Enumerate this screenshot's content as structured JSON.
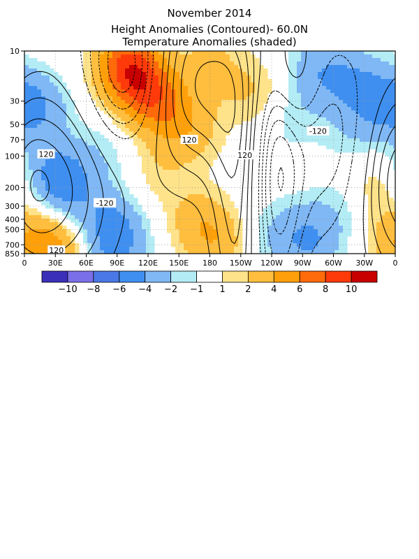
{
  "header": {
    "title": "November 2014",
    "subtitle1": "Height Anomalies (Contoured)- 60.0N",
    "subtitle2": "Temperature Anomalies (shaded)"
  },
  "colors": {
    "frame": "#000000",
    "grid": "#999999",
    "contour": "#000000"
  },
  "chart_data": {
    "type": "heatmap",
    "title": "November 2014",
    "subtitle": [
      "Height Anomalies (Contoured)- 60.0N",
      "Temperature Anomalies (shaded)"
    ],
    "x_axis": {
      "quantity": "longitude",
      "range_deg_east": [
        0,
        360
      ],
      "tick_values_deg_east": [
        0,
        30,
        60,
        90,
        120,
        150,
        180,
        210,
        240,
        270,
        300,
        330,
        360
      ],
      "tick_labels": [
        "0",
        "30E",
        "60E",
        "90E",
        "120E",
        "150E",
        "180",
        "150W",
        "120W",
        "90W",
        "60W",
        "30W",
        "0"
      ]
    },
    "y_axis": {
      "quantity": "pressure",
      "scale": "log",
      "inverted": true,
      "range": [
        850,
        10
      ],
      "tick_values": [
        10,
        30,
        50,
        70,
        100,
        200,
        300,
        400,
        500,
        700,
        850
      ],
      "tick_labels": [
        "10",
        "30",
        "50",
        "70",
        "100",
        "200",
        "300",
        "400",
        "500",
        "700",
        "850"
      ]
    },
    "grid": true,
    "shading": {
      "variable": "temperature anomaly",
      "levels": [
        -10,
        -8,
        -6,
        -4,
        -2,
        -1,
        1,
        2,
        4,
        6,
        8,
        10
      ],
      "level_labels": [
        "-10",
        "-8",
        "-6",
        "-4",
        "-2",
        "-1",
        "1",
        "2",
        "4",
        "6",
        "8",
        "10"
      ],
      "colors": [
        "#3b2fb8",
        "#7b6fe8",
        "#4a78e6",
        "#3f8ff0",
        "#7fb8f5",
        "#b3ecf5",
        "#ffffff",
        "#ffe38a",
        "#ffbe3e",
        "#ffa00a",
        "#ff6a0a",
        "#ff3a0a",
        "#c80000"
      ],
      "blobs": [
        {
          "lon": 15,
          "p": 35,
          "value": -3.0
        },
        {
          "lon": 30,
          "p": 150,
          "value": -4.0
        },
        {
          "lon": 40,
          "p": 250,
          "value": -3.0
        },
        {
          "lon": 20,
          "p": 500,
          "value": 2.5
        },
        {
          "lon": 30,
          "p": 800,
          "value": 3.5
        },
        {
          "lon": 85,
          "p": 450,
          "value": -3.5
        },
        {
          "lon": 90,
          "p": 800,
          "value": -3.0
        },
        {
          "lon": 75,
          "p": 100,
          "value": -1.5
        },
        {
          "lon": 100,
          "p": 14,
          "value": 8.0
        },
        {
          "lon": 120,
          "p": 25,
          "value": 5.0
        },
        {
          "lon": 140,
          "p": 40,
          "value": 3.0
        },
        {
          "lon": 180,
          "p": 14,
          "value": 2.5
        },
        {
          "lon": 165,
          "p": 60,
          "value": 2.0
        },
        {
          "lon": 130,
          "p": 150,
          "value": 1.5
        },
        {
          "lon": 170,
          "p": 450,
          "value": 3.0
        },
        {
          "lon": 195,
          "p": 700,
          "value": 2.5
        },
        {
          "lon": 225,
          "p": 25,
          "value": 2.0
        },
        {
          "lon": 285,
          "p": 15,
          "value": -3.0
        },
        {
          "lon": 320,
          "p": 20,
          "value": -3.0
        },
        {
          "lon": 350,
          "p": 30,
          "value": -3.0
        },
        {
          "lon": 320,
          "p": 60,
          "value": -1.5
        },
        {
          "lon": 260,
          "p": 45,
          "value": -1.5
        },
        {
          "lon": 280,
          "p": 700,
          "value": -3.0
        },
        {
          "lon": 265,
          "p": 500,
          "value": -1.5
        },
        {
          "lon": 310,
          "p": 300,
          "value": -1.5
        },
        {
          "lon": 340,
          "p": 200,
          "value": 2.0
        },
        {
          "lon": 350,
          "p": 700,
          "value": 1.5
        },
        {
          "lon": 230,
          "p": 600,
          "value": -1.5
        }
      ]
    },
    "contours": {
      "variable": "height anomaly",
      "interval": 60,
      "labeled_values": [
        120,
        -120,
        120,
        120,
        120,
        -120
      ],
      "centers": [
        {
          "lon": 25,
          "p": 200,
          "value": 280,
          "sx": 42,
          "sy": 1.5
        },
        {
          "lon": 100,
          "p": 15,
          "value": -400,
          "sx": 28,
          "sy": 1.2
        },
        {
          "lon": 165,
          "p": 20,
          "value": 320,
          "sx": 45,
          "sy": 1.4
        },
        {
          "lon": 206,
          "p": 300,
          "value": 200,
          "sx": 17,
          "sy": 2.2
        },
        {
          "lon": 245,
          "p": 150,
          "value": -260,
          "sx": 16,
          "sy": 2.2
        },
        {
          "lon": 260,
          "p": 15,
          "value": 200,
          "sx": 16,
          "sy": 0.9
        },
        {
          "lon": 300,
          "p": 80,
          "value": -180,
          "sx": 45,
          "sy": 1.5
        },
        {
          "lon": 355,
          "p": 120,
          "value": 120,
          "sx": 22,
          "sy": 1.3
        }
      ]
    },
    "contour_labels": [
      {
        "text": "120",
        "lon": 21,
        "p": 96
      },
      {
        "text": "-120",
        "lon": 78,
        "p": 280
      },
      {
        "text": "120",
        "lon": 160,
        "p": 70
      },
      {
        "text": "120",
        "lon": 214,
        "p": 98
      },
      {
        "text": "-120",
        "lon": 285,
        "p": 58
      },
      {
        "text": "120",
        "lon": 31,
        "p": 790
      }
    ]
  }
}
